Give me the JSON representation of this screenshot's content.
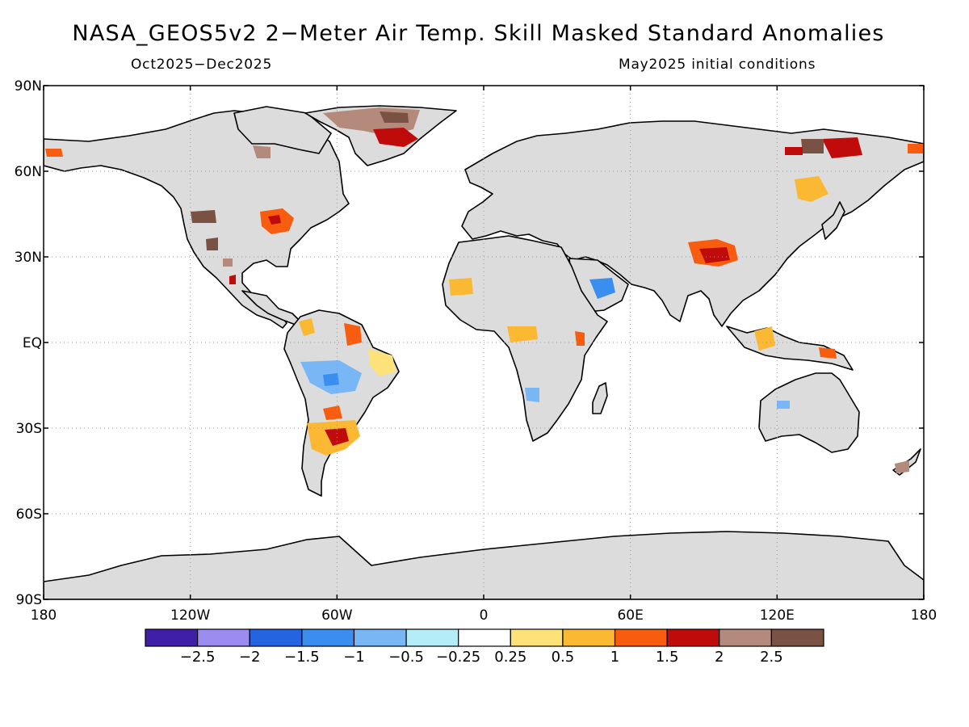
{
  "title": "NASA_GEOS5v2 2−Meter Air Temp. Skill Masked Standard Anomalies",
  "subtitle_left": "Oct2025−Dec2025",
  "subtitle_right": "May2025 initial conditions",
  "lat_labels": [
    "90N",
    "60N",
    "30N",
    "EQ",
    "30S",
    "60S",
    "90S"
  ],
  "lon_labels": [
    "180",
    "120W",
    "60W",
    "0",
    "60E",
    "120E",
    "180"
  ],
  "colors": {
    "land_masked": "#dcdcdc",
    "coast": "#000000",
    "grid": "#9a9a9a"
  },
  "legend": {
    "colors": [
      "#3f1ea8",
      "#9c8cf2",
      "#2464e0",
      "#3a8ef0",
      "#78b6f6",
      "#b4ecf8",
      "#ffffff",
      "#fde27a",
      "#fbb832",
      "#f85c0e",
      "#c00b0b",
      "#b48a7c",
      "#7a5244"
    ],
    "labels": [
      "−2.5",
      "−2",
      "−1.5",
      "−1",
      "−0.5",
      "−0.25",
      "0.25",
      "0.5",
      "1",
      "1.5",
      "2",
      "2.5"
    ]
  }
}
